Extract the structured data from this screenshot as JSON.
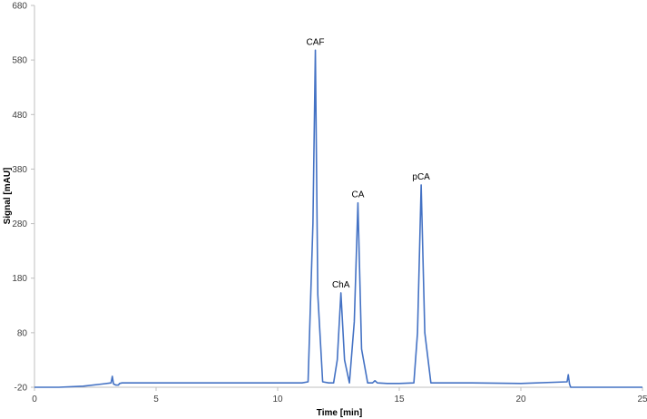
{
  "chart_data": {
    "type": "line",
    "title": "",
    "xlabel": "Time [min]",
    "ylabel": "Signal [mAU]",
    "xlim": [
      0,
      25
    ],
    "ylim": [
      -20,
      680
    ],
    "xticks": [
      0,
      5,
      10,
      15,
      20,
      25
    ],
    "yticks": [
      -20,
      80,
      180,
      280,
      380,
      480,
      580,
      680
    ],
    "grid": false,
    "legend": "none",
    "line_color": "#4472C4",
    "series": [
      {
        "baseline": -12,
        "x": [
          0,
          1,
          2,
          2.8,
          3.15,
          3.2,
          3.25,
          3.35,
          3.45,
          3.5,
          3.6,
          4,
          5,
          6,
          8,
          10,
          11,
          11.25,
          11.45,
          11.55,
          11.65,
          11.85,
          12.1,
          12.3,
          12.45,
          12.6,
          12.75,
          12.95,
          13.15,
          13.3,
          13.45,
          13.7,
          13.9,
          14.0,
          14.1,
          14.5,
          15.0,
          15.6,
          15.75,
          15.9,
          16.05,
          16.3,
          17,
          18,
          20,
          21.9,
          21.95,
          22.0,
          22.05,
          22.1,
          23,
          24,
          25
        ],
        "y": [
          -20,
          -20,
          -18,
          -14,
          -12,
          0,
          -14,
          -16,
          -16,
          -13,
          -12,
          -12,
          -12,
          -12,
          -12,
          -12,
          -12,
          -10,
          280,
          598,
          150,
          -10,
          -12,
          -12,
          30,
          153,
          30,
          -12,
          100,
          318,
          50,
          -12,
          -12,
          -8,
          -12,
          -13,
          -13,
          -12,
          80,
          351,
          80,
          -12,
          -12,
          -12,
          -13,
          -10,
          3,
          -14,
          -20,
          -20,
          -20,
          -20,
          -20
        ]
      }
    ],
    "annotations": [
      {
        "text": "CAF",
        "x": 11.55,
        "y": 598
      },
      {
        "text": "ChA",
        "x": 12.6,
        "y": 153
      },
      {
        "text": "CA",
        "x": 13.3,
        "y": 318
      },
      {
        "text": "pCA",
        "x": 15.9,
        "y": 351
      }
    ]
  }
}
